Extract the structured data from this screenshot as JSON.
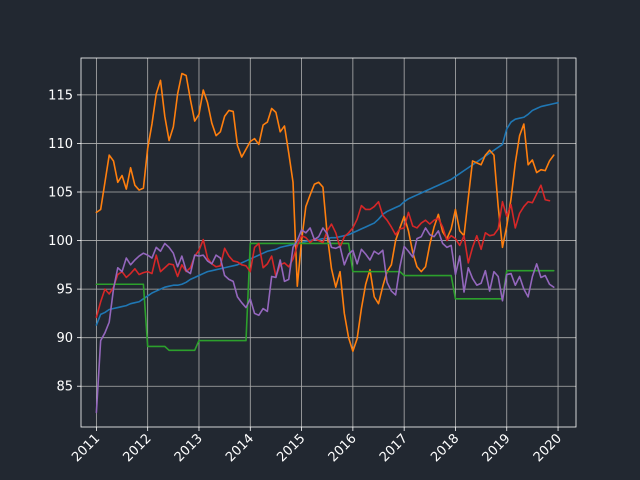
{
  "colors": {
    "background": "#222831",
    "axes": "#ffffff",
    "grid": "#b0b0b0"
  },
  "chart_data": {
    "type": "line",
    "title": "",
    "xlabel": "",
    "ylabel": "",
    "grid": true,
    "x_range": [
      "2010-09-01",
      "2020-04-01"
    ],
    "xlim": [
      2010.7,
      2020.35
    ],
    "ylim": [
      80.8,
      118.8
    ],
    "x_ticks": [
      "2011",
      "2012",
      "2013",
      "2014",
      "2015",
      "2016",
      "2017",
      "2018",
      "2019",
      "2020"
    ],
    "y_ticks": [
      85,
      90,
      95,
      100,
      105,
      110,
      115
    ],
    "x_start": "2011-01",
    "series": [
      {
        "color": "#1f77b4",
        "values": [
          91.3,
          92.4,
          92.6,
          92.9,
          93.0,
          93.1,
          93.2,
          93.3,
          93.5,
          93.6,
          93.7,
          94.0,
          94.3,
          94.6,
          94.8,
          95.0,
          95.2,
          95.3,
          95.4,
          95.4,
          95.5,
          95.7,
          96.0,
          96.2,
          96.4,
          96.6,
          96.8,
          96.9,
          97.0,
          97.1,
          97.2,
          97.3,
          97.4,
          97.5,
          97.7,
          97.9,
          98.1,
          98.3,
          98.5,
          98.7,
          98.9,
          99.0,
          99.1,
          99.3,
          99.4,
          99.5,
          99.6,
          99.7,
          99.8,
          99.9,
          100.0,
          100.1,
          100.1,
          100.2,
          100.2,
          100.3,
          100.3,
          100.4,
          100.5,
          100.6,
          100.8,
          101.0,
          101.2,
          101.4,
          101.6,
          101.8,
          102.2,
          102.7,
          103.0,
          103.2,
          103.4,
          103.6,
          104.0,
          104.3,
          104.5,
          104.7,
          104.9,
          105.1,
          105.3,
          105.5,
          105.7,
          105.9,
          106.1,
          106.3,
          106.6,
          106.9,
          107.2,
          107.5,
          107.8,
          108.1,
          108.4,
          108.7,
          109.0,
          109.3,
          109.6,
          109.9,
          111.5,
          112.2,
          112.5,
          112.6,
          112.7,
          113.0,
          113.4,
          113.6,
          113.8,
          113.9,
          114.0,
          114.1,
          114.2
        ]
      },
      {
        "color": "#ff7f0e",
        "values": [
          102.9,
          103.2,
          106.0,
          108.8,
          108.2,
          106.0,
          106.7,
          105.3,
          107.5,
          105.7,
          105.2,
          105.4,
          109.5,
          112.0,
          115.1,
          116.5,
          112.8,
          110.3,
          111.7,
          115.1,
          117.2,
          117.0,
          114.5,
          112.3,
          113.0,
          115.5,
          114.2,
          112.1,
          110.8,
          111.2,
          112.8,
          113.4,
          113.3,
          109.8,
          108.6,
          109.4,
          110.2,
          110.5,
          109.9,
          111.9,
          112.2,
          113.6,
          113.2,
          111.2,
          111.8,
          109.0,
          106.0,
          95.3,
          100.0,
          103.5,
          104.7,
          105.8,
          106.0,
          105.5,
          100.6,
          97.1,
          95.2,
          96.8,
          92.5,
          90.0,
          88.6,
          89.9,
          93.0,
          95.5,
          97.0,
          94.2,
          93.5,
          95.3,
          96.8,
          97.5,
          100.0,
          101.3,
          102.5,
          101.0,
          98.8,
          97.3,
          96.8,
          97.3,
          99.6,
          101.4,
          102.7,
          100.9,
          100.2,
          101.2,
          103.2,
          101.0,
          100.5,
          104.4,
          108.2,
          108.0,
          107.8,
          108.8,
          109.3,
          108.8,
          103.5,
          99.3,
          101.5,
          104.3,
          108.0,
          110.8,
          112.0,
          107.8,
          108.3,
          107.0,
          107.3,
          107.2,
          108.2,
          108.8
        ]
      },
      {
        "color": "#2ca02c",
        "values": [
          95.5,
          95.5,
          95.5,
          95.5,
          95.5,
          95.5,
          95.5,
          95.5,
          95.5,
          95.5,
          95.5,
          95.5,
          89.1,
          89.1,
          89.1,
          89.1,
          89.1,
          88.7,
          88.7,
          88.7,
          88.7,
          88.7,
          88.7,
          88.7,
          89.7,
          89.7,
          89.7,
          89.7,
          89.7,
          89.7,
          89.7,
          89.7,
          89.7,
          89.7,
          89.7,
          89.7,
          99.7,
          99.7,
          99.7,
          99.7,
          99.7,
          99.7,
          99.7,
          99.7,
          99.7,
          99.7,
          99.7,
          99.7,
          99.7,
          99.7,
          99.7,
          99.7,
          99.7,
          99.7,
          99.7,
          99.7,
          99.7,
          99.7,
          99.7,
          99.7,
          96.8,
          96.8,
          96.8,
          96.8,
          96.8,
          96.8,
          96.8,
          96.8,
          96.8,
          96.8,
          96.8,
          96.8,
          96.4,
          96.4,
          96.4,
          96.4,
          96.4,
          96.4,
          96.4,
          96.4,
          96.4,
          96.4,
          96.4,
          96.4,
          94.0,
          94.0,
          94.0,
          94.0,
          94.0,
          94.0,
          94.0,
          94.0,
          94.0,
          94.0,
          94.0,
          94.0,
          96.9,
          96.9,
          96.9,
          96.9,
          96.9,
          96.9,
          96.9,
          96.9,
          96.9,
          96.9,
          96.9,
          96.9
        ]
      },
      {
        "color": "#d62728",
        "values": [
          92.1,
          93.7,
          95.0,
          94.5,
          95.2,
          96.5,
          96.8,
          96.2,
          96.6,
          97.1,
          96.5,
          96.7,
          96.8,
          96.6,
          98.5,
          96.8,
          97.2,
          97.6,
          97.5,
          96.3,
          97.5,
          96.8,
          97.2,
          98.4,
          99.0,
          100.1,
          98.2,
          97.6,
          97.3,
          97.4,
          99.2,
          98.4,
          97.9,
          97.8,
          97.5,
          97.4,
          96.8,
          99.3,
          99.7,
          97.2,
          97.6,
          98.4,
          96.3,
          97.5,
          97.7,
          97.3,
          98.1,
          99.5,
          100.5,
          100.3,
          99.8,
          100.2,
          100.0,
          99.8,
          101.0,
          101.7,
          100.8,
          99.3,
          100.4,
          100.8,
          101.3,
          102.2,
          103.6,
          103.2,
          103.2,
          103.5,
          104.0,
          102.6,
          102.1,
          101.4,
          100.6,
          101.2,
          101.3,
          102.9,
          101.5,
          101.3,
          101.8,
          102.1,
          101.7,
          102.1,
          102.3,
          101.4,
          100.0,
          100.5,
          100.2,
          99.5,
          100.5,
          97.7,
          99.3,
          100.5,
          99.1,
          100.8,
          100.5,
          100.6,
          101.2,
          104.0,
          102.5,
          103.7,
          101.3,
          102.8,
          103.5,
          104.0,
          103.9,
          104.8,
          105.7,
          104.2,
          104.1
        ]
      },
      {
        "color": "#9467bd",
        "values": [
          82.3,
          89.7,
          90.5,
          91.6,
          95.0,
          97.2,
          96.8,
          98.2,
          97.5,
          98.0,
          98.4,
          98.7,
          98.5,
          98.2,
          99.3,
          98.9,
          99.7,
          99.3,
          98.7,
          97.3,
          98.4,
          96.9,
          96.6,
          98.5,
          98.4,
          98.5,
          97.9,
          97.6,
          98.5,
          98.2,
          96.4,
          96.0,
          95.8,
          94.2,
          93.6,
          93.1,
          94.0,
          92.5,
          92.3,
          93.0,
          92.7,
          96.3,
          96.2,
          98.0,
          95.8,
          96.0,
          99.3,
          100.0,
          101.1,
          100.8,
          101.3,
          100.1,
          100.4,
          101.3,
          100.7,
          99.3,
          99.2,
          99.4,
          97.5,
          98.6,
          99.0,
          97.6,
          99.1,
          98.6,
          98.0,
          98.9,
          98.6,
          99.0,
          95.7,
          94.8,
          94.4,
          97.3,
          99.4,
          98.9,
          98.3,
          100.2,
          100.4,
          101.3,
          100.6,
          100.4,
          101.0,
          99.7,
          99.3,
          99.5,
          96.5,
          98.4,
          94.7,
          97.2,
          96.1,
          95.4,
          95.6,
          96.9,
          94.8,
          96.8,
          96.3,
          93.8,
          96.5,
          96.6,
          95.4,
          96.3,
          95.0,
          94.2,
          96.3,
          97.6,
          96.2,
          96.4,
          95.5,
          95.2
        ]
      }
    ]
  }
}
